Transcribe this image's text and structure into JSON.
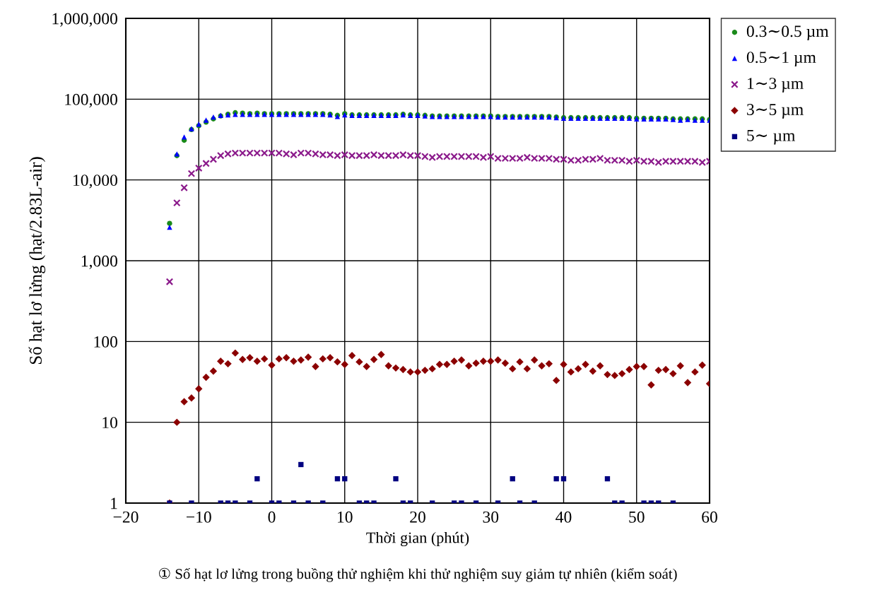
{
  "chart_data": {
    "type": "scatter",
    "xlabel": "Thời gian (phút)",
    "ylabel": "Số hạt lơ lửng (hạt/2.83L-air)",
    "annotations": [
      "① Số hạt lơ lửng trong buồng thử nghiệm khi thử nghiệm suy giảm tự nhiên (kiểm soát)"
    ],
    "log": "y",
    "grid": true,
    "legend": "right",
    "xlim": [
      -20,
      60
    ],
    "xticks": [
      {
        "value": -20,
        "label": "−20"
      },
      {
        "value": -10,
        "label": "−10"
      },
      0,
      10,
      20,
      30,
      40,
      50,
      60
    ],
    "ylim": [
      1,
      1000000
    ],
    "yticks": [
      1,
      10,
      100,
      {
        "value": 1000,
        "label": "1,000"
      },
      {
        "value": 10000,
        "label": "10,000"
      },
      {
        "value": 100000,
        "label": "100,000"
      },
      {
        "value": 1000000,
        "label": "1,000,000"
      }
    ],
    "x": [
      -14,
      -13,
      -12,
      -11,
      -10,
      -9,
      -8,
      -7,
      -6,
      -5,
      -4,
      -3,
      -2,
      -1,
      0,
      1,
      2,
      3,
      4,
      5,
      6,
      7,
      8,
      9,
      10,
      11,
      12,
      13,
      14,
      15,
      16,
      17,
      18,
      19,
      20,
      21,
      22,
      23,
      24,
      25,
      26,
      27,
      28,
      29,
      30,
      31,
      32,
      33,
      34,
      35,
      36,
      37,
      38,
      39,
      40,
      41,
      42,
      43,
      44,
      45,
      46,
      47,
      48,
      49,
      50,
      51,
      52,
      53,
      54,
      55,
      56,
      57,
      58,
      59,
      60
    ],
    "series": [
      {
        "name": "0.3∼0.5 µm",
        "color": "#1a8a1a",
        "marker": "circle",
        "values": [
          2900,
          20000,
          31000,
          42000,
          47000,
          52000,
          57000,
          62000,
          65000,
          68000,
          67000,
          66000,
          67000,
          66000,
          66000,
          66000,
          66000,
          66000,
          66000,
          66000,
          66000,
          66000,
          65000,
          63000,
          66000,
          64000,
          64000,
          64000,
          64000,
          64000,
          64000,
          64000,
          65000,
          64000,
          64000,
          63000,
          62000,
          62000,
          62000,
          62000,
          62000,
          62000,
          62000,
          62000,
          62000,
          61000,
          61000,
          61000,
          61000,
          61000,
          61000,
          61000,
          61000,
          60000,
          59000,
          59000,
          59000,
          59000,
          59000,
          59000,
          59000,
          59000,
          59000,
          59000,
          58000,
          58000,
          58000,
          58000,
          58000,
          57000,
          57000,
          57000,
          57000,
          57000,
          56000
        ]
      },
      {
        "name": "0.5∼1 µm",
        "color": "#0000ff",
        "marker": "triangle",
        "values": [
          2600,
          21000,
          34000,
          43000,
          49000,
          55000,
          60000,
          63000,
          64000,
          65000,
          65000,
          65000,
          65000,
          65000,
          65000,
          65000,
          65000,
          65000,
          65000,
          65000,
          65000,
          65000,
          64000,
          61000,
          64000,
          63000,
          63000,
          63000,
          63000,
          63000,
          63000,
          63000,
          64000,
          63000,
          63000,
          62000,
          61000,
          61000,
          61000,
          61000,
          61000,
          61000,
          61000,
          61000,
          61000,
          60000,
          60000,
          60000,
          60000,
          60000,
          60000,
          60000,
          60000,
          59000,
          58000,
          58000,
          58000,
          58000,
          58000,
          58000,
          58000,
          58000,
          58000,
          58000,
          57000,
          57000,
          57000,
          57000,
          57000,
          56000,
          55000,
          56000,
          55000,
          55000,
          55000
        ]
      },
      {
        "name": "1∼3 µm",
        "color": "#8b1a8b",
        "marker": "cross",
        "values": [
          550,
          5200,
          8000,
          12000,
          14000,
          16000,
          18000,
          20000,
          21000,
          21500,
          21500,
          21500,
          21500,
          21500,
          21500,
          21500,
          21000,
          20500,
          21500,
          21500,
          21000,
          20500,
          20500,
          20000,
          20500,
          20000,
          20000,
          20000,
          20500,
          20000,
          20000,
          20000,
          20500,
          20000,
          20000,
          19500,
          19000,
          19500,
          19500,
          19500,
          19500,
          19500,
          19500,
          19000,
          19500,
          18500,
          18500,
          18500,
          18500,
          19000,
          18500,
          18500,
          18500,
          18000,
          18000,
          17500,
          17500,
          18000,
          18000,
          18500,
          17500,
          17500,
          17500,
          17000,
          17500,
          17000,
          17000,
          16500,
          17000,
          17000,
          17000,
          17000,
          17000,
          16500,
          17000
        ]
      },
      {
        "name": "3∼5 µm",
        "color": "#8b0000",
        "marker": "diamond",
        "values": [
          1,
          10,
          18,
          20,
          26,
          36,
          43,
          57,
          53,
          72,
          60,
          63,
          57,
          61,
          51,
          61,
          63,
          57,
          59,
          64,
          49,
          61,
          63,
          56,
          52,
          67,
          56,
          49,
          60,
          69,
          50,
          47,
          45,
          42,
          42,
          44,
          46,
          52,
          52,
          57,
          59,
          50,
          54,
          57,
          57,
          59,
          54,
          46,
          56,
          46,
          59,
          50,
          53,
          33,
          52,
          42,
          46,
          52,
          43,
          50,
          39,
          38,
          40,
          45,
          49,
          49,
          29,
          44,
          45,
          40,
          50,
          31,
          42,
          51,
          30
        ]
      },
      {
        "name": "5∼ µm",
        "color": "#000080",
        "marker": "square",
        "x": [
          -14,
          -11,
          -7,
          -6,
          -5,
          -3,
          -2,
          0,
          1,
          3,
          4,
          5,
          7,
          9,
          10,
          12,
          13,
          14,
          17,
          18,
          19,
          22,
          25,
          26,
          28,
          31,
          33,
          34,
          36,
          39,
          40,
          46,
          47,
          48,
          51,
          52,
          53,
          55
        ],
        "values": [
          1,
          1,
          1,
          1,
          1,
          1,
          2,
          1,
          1,
          1,
          3,
          1,
          1,
          2,
          2,
          1,
          1,
          1,
          2,
          1,
          1,
          1,
          1,
          1,
          1,
          1,
          2,
          1,
          1,
          2,
          2,
          2,
          1,
          1,
          1,
          1,
          1,
          1
        ]
      }
    ]
  }
}
